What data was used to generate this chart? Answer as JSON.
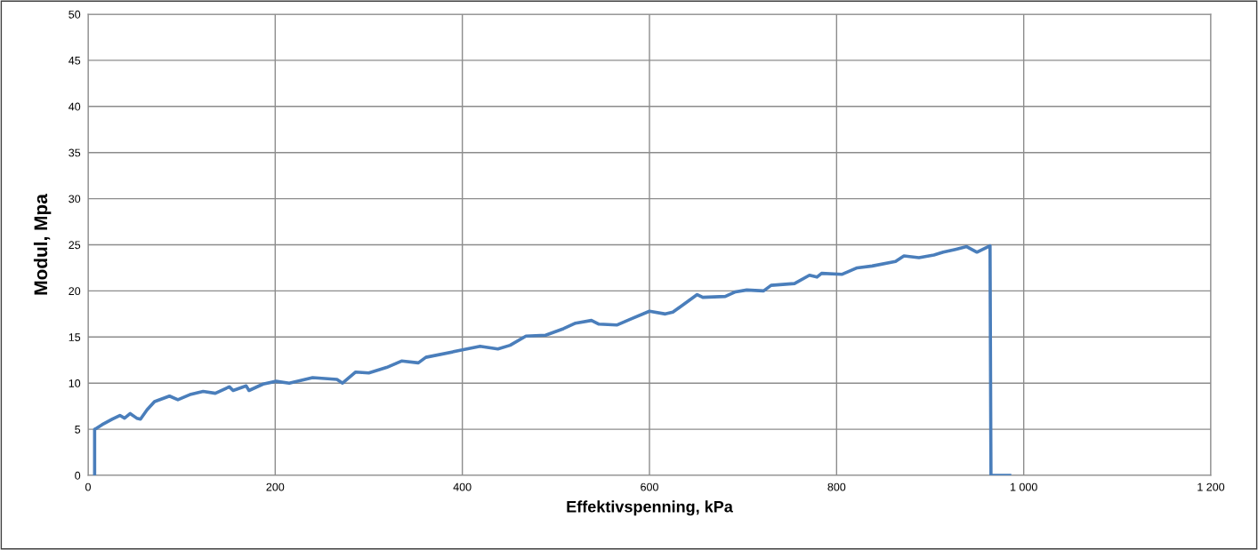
{
  "chart_data": {
    "type": "line",
    "xlabel": "Effektivspenning, kPa",
    "ylabel": "Modul, Mpa",
    "xlim": [
      0,
      1200
    ],
    "xticks": [
      0,
      200,
      400,
      600,
      800,
      {
        "value": 1000,
        "label": "1 000"
      },
      {
        "value": 1200,
        "label": "1 200"
      }
    ],
    "ylim": [
      0,
      50
    ],
    "yticks": [
      0,
      5,
      10,
      15,
      20,
      25,
      30,
      35,
      40,
      45,
      50
    ],
    "grid": true,
    "marker": "none",
    "line_style": "solid",
    "series": [
      {
        "color": "#4a7ebb",
        "x": [
          7,
          7,
          9,
          15,
          26,
          34,
          39,
          45,
          52,
          56,
          63,
          71,
          87,
          96,
          110,
          123,
          136,
          151,
          155,
          169,
          172,
          187,
          201,
          215,
          240,
          266,
          272,
          286,
          300,
          319,
          335,
          353,
          361,
          400,
          419,
          438,
          451,
          468,
          489,
          508,
          521,
          538,
          546,
          565,
          581,
          600,
          617,
          625,
          636,
          651,
          657,
          681,
          692,
          704,
          722,
          730,
          755,
          771,
          779,
          784,
          806,
          822,
          838,
          863,
          872,
          888,
          904,
          914,
          927,
          939,
          950,
          964,
          965,
          985
        ],
        "values": [
          0,
          5.0,
          5.1,
          5.5,
          6.1,
          6.5,
          6.2,
          6.7,
          6.2,
          6.1,
          7.1,
          8.0,
          8.6,
          8.2,
          8.8,
          9.1,
          8.9,
          9.6,
          9.2,
          9.7,
          9.2,
          9.9,
          10.2,
          10.0,
          10.6,
          10.4,
          10.0,
          11.2,
          11.1,
          11.7,
          12.4,
          12.2,
          12.8,
          13.6,
          14.0,
          13.7,
          14.1,
          15.1,
          15.2,
          15.9,
          16.5,
          16.8,
          16.4,
          16.3,
          17.0,
          17.8,
          17.5,
          17.7,
          18.5,
          19.6,
          19.3,
          19.4,
          19.9,
          20.1,
          20.0,
          20.6,
          20.8,
          21.7,
          21.5,
          21.9,
          21.8,
          22.5,
          22.7,
          23.2,
          23.8,
          23.6,
          23.9,
          24.2,
          24.5,
          24.8,
          24.2,
          24.9,
          0,
          0
        ]
      }
    ]
  }
}
